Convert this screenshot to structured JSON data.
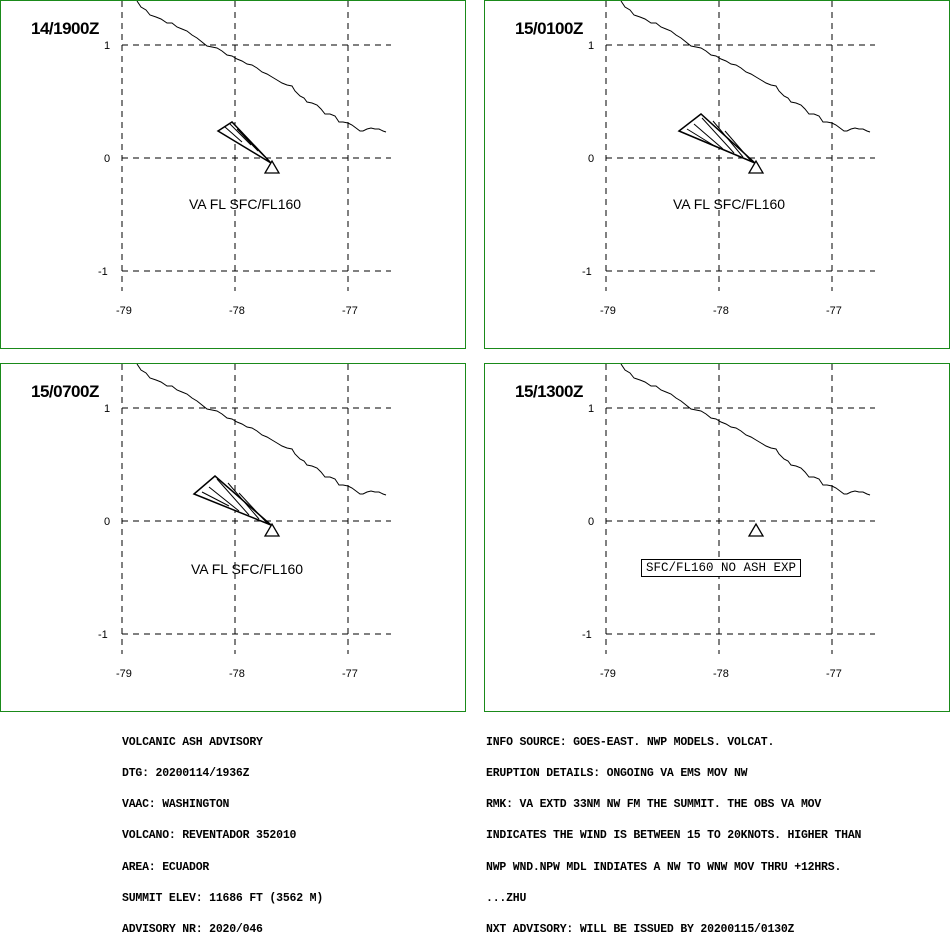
{
  "panels": [
    {
      "time_label": "14/1900Z",
      "ash_label": "VA FL SFC/FL160",
      "has_ash": true
    },
    {
      "time_label": "15/0100Z",
      "ash_label": "VA FL SFC/FL160",
      "has_ash": true
    },
    {
      "time_label": "15/0700Z",
      "ash_label": "VA FL SFC/FL160",
      "has_ash": true
    },
    {
      "time_label": "15/1300Z",
      "ash_label": "SFC/FL160 NO ASH EXP",
      "has_ash": false
    }
  ],
  "axes": {
    "lon_ticks": [
      "-79",
      "-78",
      "-77"
    ],
    "lat_ticks": [
      "1",
      "0",
      "-1"
    ]
  },
  "advisory_left": [
    "VOLCANIC ASH ADVISORY",
    "DTG: 20200114/1936Z",
    "VAAC: WASHINGTON",
    "VOLCANO: REVENTADOR 352010",
    "AREA: ECUADOR",
    "SUMMIT ELEV: 11686 FT (3562 M)",
    "ADVISORY NR: 2020/046"
  ],
  "advisory_right": [
    "INFO SOURCE: GOES-EAST. NWP MODELS. VOLCAT.",
    "ERUPTION DETAILS: ONGOING VA EMS MOV NW",
    "RMK: VA EXTD 33NM NW FM THE SUMMIT. THE OBS VA MOV",
    "INDICATES THE WIND IS BETWEEN 15 TO 20KNOTS. HIGHER THAN",
    "NWP WND.NPW MDL INDIATES A NW TO WNW MOV THRU +12HRS.",
    "...ZHU",
    "NXT ADVISORY: WILL BE ISSUED BY 20200115/0130Z"
  ],
  "colors": {
    "panel_border": "#1a8a1a",
    "grid": "#000000"
  }
}
